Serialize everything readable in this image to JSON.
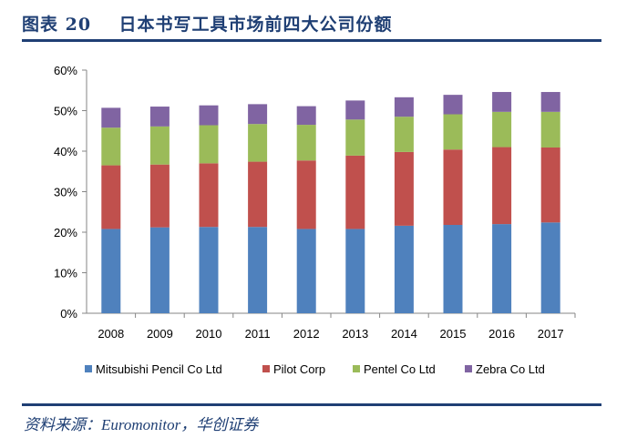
{
  "header": {
    "title": "图表 20    日本书写工具市场前四大公司份额"
  },
  "footer": {
    "source": "资料来源：Euromonitor，华创证券"
  },
  "chart_data": {
    "type": "bar",
    "stacked": true,
    "title": "",
    "xlabel": "",
    "ylabel": "",
    "categories": [
      "2008",
      "2009",
      "2010",
      "2011",
      "2012",
      "2013",
      "2014",
      "2015",
      "2016",
      "2017"
    ],
    "ylim": [
      0,
      60
    ],
    "yticks": [
      "0%",
      "10%",
      "20%",
      "30%",
      "40%",
      "50%",
      "60%"
    ],
    "grid": false,
    "legend": "bottom",
    "series": [
      {
        "name": "Mitsubishi Pencil Co Ltd",
        "color": "#4F81BD",
        "values": [
          20.8,
          21.2,
          21.3,
          21.3,
          20.8,
          20.8,
          21.6,
          21.8,
          22.0,
          22.4
        ]
      },
      {
        "name": "Pilot Corp",
        "color": "#C0504D",
        "values": [
          15.7,
          15.5,
          15.7,
          16.1,
          16.9,
          18.1,
          18.2,
          18.6,
          19.0,
          18.5
        ]
      },
      {
        "name": "Pentel Co Ltd",
        "color": "#9BBB59",
        "values": [
          9.3,
          9.4,
          9.4,
          9.3,
          8.8,
          8.9,
          8.7,
          8.7,
          8.7,
          8.8
        ]
      },
      {
        "name": "Zebra Co Ltd",
        "color": "#8064A2",
        "values": [
          4.9,
          4.9,
          4.9,
          4.9,
          4.6,
          4.7,
          4.8,
          4.8,
          4.9,
          4.9
        ]
      }
    ]
  }
}
